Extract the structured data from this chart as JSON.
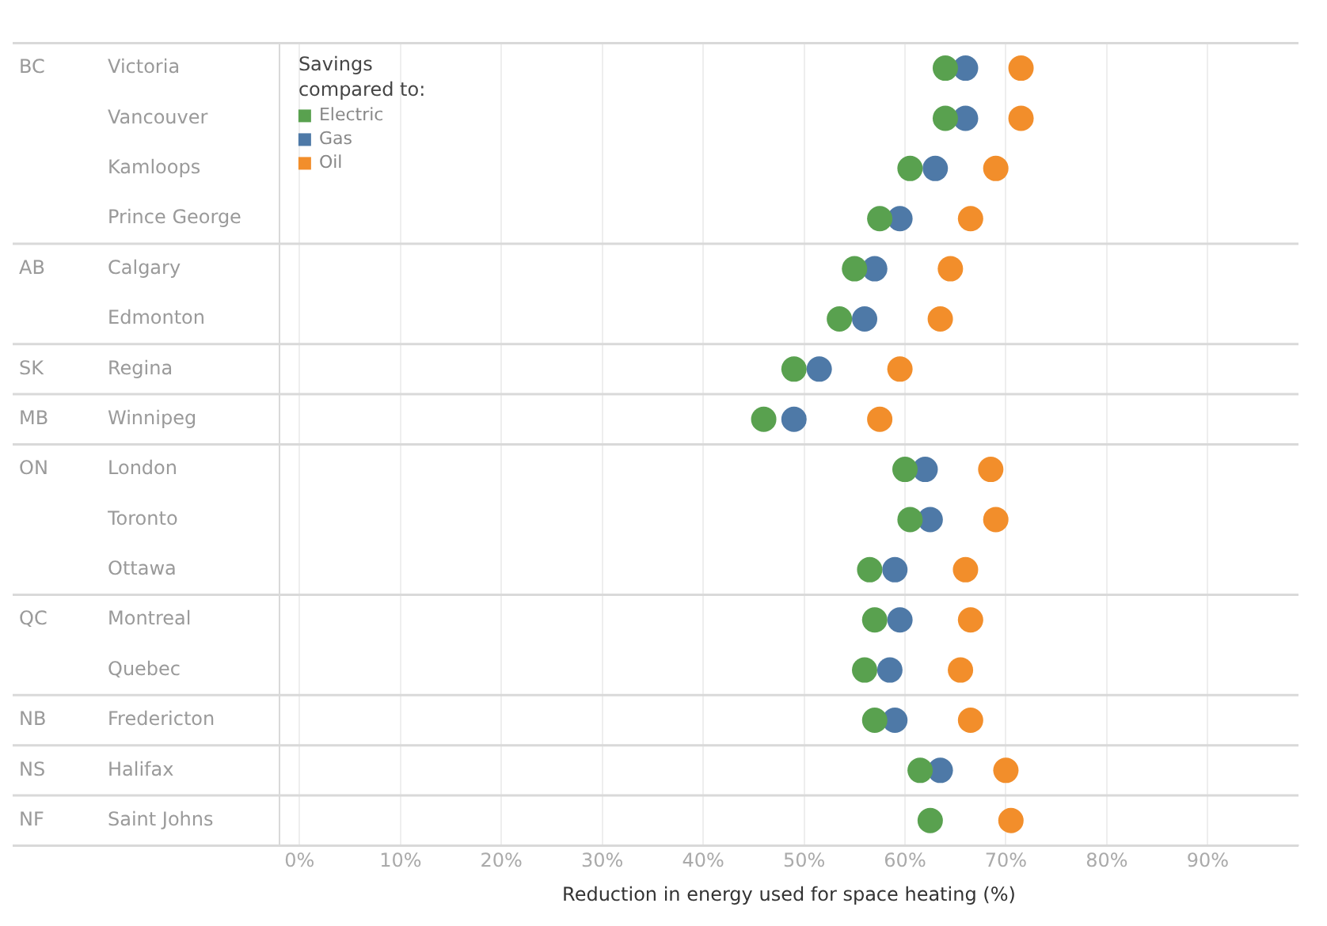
{
  "chart_data": {
    "type": "scatter",
    "orientation": "horizontal",
    "xlabel": "Reduction in energy used for space heating (%)",
    "legend_title": "Savings compared to:",
    "legend": "top left",
    "marker": "circle",
    "grid": "x",
    "categories": [
      "Victoria",
      "Vancouver",
      "Kamloops",
      "Prince George",
      "Calgary",
      "Edmonton",
      "Regina",
      "Winnipeg",
      "London",
      "Toronto",
      "Ottawa",
      "Montreal",
      "Quebec",
      "Fredericton",
      "Halifax",
      "Saint Johns"
    ],
    "series": [
      {
        "name": "Electric",
        "color": "#59a14f",
        "values": [
          64,
          64,
          60.5,
          57.5,
          55,
          53.5,
          49,
          46,
          60,
          60.5,
          56.5,
          57,
          56,
          57,
          61.5,
          62.5
        ]
      },
      {
        "name": "Gas",
        "color": "#4e79a7",
        "values": [
          66,
          66,
          63,
          59.5,
          57,
          56,
          51.5,
          49,
          62,
          62.5,
          59,
          59.5,
          58.5,
          59,
          63.5,
          null
        ]
      },
      {
        "name": "Oil",
        "color": "#f28e2b",
        "values": [
          71.5,
          71.5,
          69,
          66.5,
          64.5,
          63.5,
          59.5,
          57.5,
          68.5,
          69,
          66,
          66.5,
          65.5,
          66.5,
          70,
          70.5
        ]
      }
    ],
    "xlim": [
      -2,
      99
    ],
    "xticks": [
      {
        "value": 0,
        "label": "0%"
      },
      {
        "value": 10,
        "label": "10%"
      },
      {
        "value": 20,
        "label": "20%"
      },
      {
        "value": 30,
        "label": "30%"
      },
      {
        "value": 40,
        "label": "40%"
      },
      {
        "value": 50,
        "label": "50%"
      },
      {
        "value": 60,
        "label": "60%"
      },
      {
        "value": 70,
        "label": "70%"
      },
      {
        "value": 80,
        "label": "80%"
      },
      {
        "value": 90,
        "label": "90%"
      }
    ],
    "y2_categories": [
      "BC",
      null,
      null,
      null,
      "AB",
      null,
      "SK",
      "MB",
      "ON",
      null,
      null,
      "QC",
      null,
      "NB",
      "NS",
      "NF"
    ]
  }
}
